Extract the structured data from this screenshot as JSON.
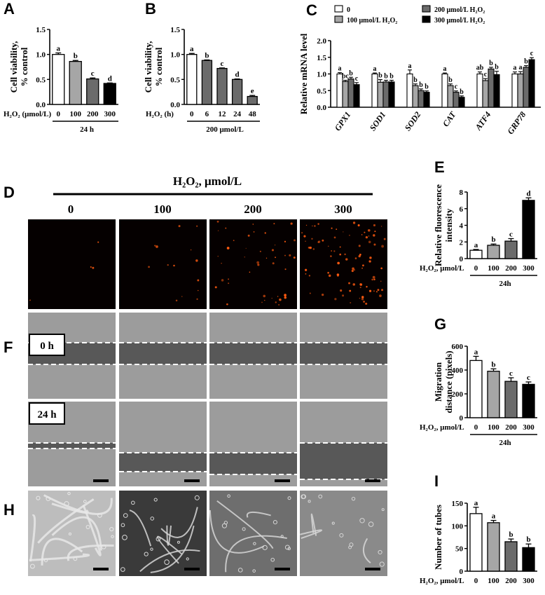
{
  "panels": {
    "A": {
      "letter": "A",
      "ylabel_1": "Cell viability,",
      "ylabel_2": "% control",
      "yticks": [
        "0.0",
        "0.5",
        "1.0",
        "1.5"
      ],
      "cond_label": "H₂O₂ (μmol/L)",
      "group_label": "24 h"
    },
    "B": {
      "letter": "B",
      "ylabel_1": "Cell viability,",
      "ylabel_2": "% control",
      "yticks": [
        "0.0",
        "0.5",
        "1.0",
        "1.5"
      ],
      "cond_label": "H₂O₂  (h)",
      "group_label": "200 μmol/L"
    },
    "C": {
      "letter": "C",
      "ylabel": "Relative mRNA level",
      "yticks": [
        "0.0",
        "0.5",
        "1.0",
        "1.5",
        "2.0"
      ],
      "legend": [
        "0",
        "100 μmol/L H₂O₂",
        "200 μmol/L H₂O₂",
        "300 μmol/L H₂O₂"
      ]
    },
    "D": {
      "letter": "D",
      "title": "H₂O₂,  μmol/L",
      "columns": [
        "0",
        "100",
        "200",
        "300"
      ]
    },
    "E": {
      "letter": "E",
      "ylabel_1": "Relative fluorescence",
      "ylabel_2": "intensity",
      "yticks": [
        "0",
        "2",
        "4",
        "6",
        "8"
      ],
      "cond_label": "H₂O₂, μmol/L",
      "group_label": "24h"
    },
    "F": {
      "letter": "F",
      "time_0": "0  h",
      "time_24": "24 h"
    },
    "G": {
      "letter": "G",
      "ylabel_1": "Migration",
      "ylabel_2": "distance (pixels)",
      "yticks": [
        "0",
        "200",
        "400",
        "600"
      ],
      "cond_label": "H₂O₂, μmol/L",
      "group_label": "24h"
    },
    "H": {
      "letter": "H"
    },
    "I": {
      "letter": "I",
      "ylabel": "Number of tubes",
      "yticks": [
        "0",
        "50",
        "100",
        "150"
      ],
      "cond_label": "H₂O₂, μmol/L"
    }
  },
  "colors": {
    "c0": "#ffffff",
    "c100": "#a6a6a6",
    "c200": "#6b6b6b",
    "c300": "#000000",
    "fluor_bg": "#050000",
    "fluor_dot": "#ff5a10",
    "bright_field": "#9c9c9c",
    "scratch_gap": "#585858"
  },
  "chart_data": [
    {
      "panel": "A",
      "type": "bar",
      "categories": [
        "0",
        "100",
        "200",
        "300"
      ],
      "values": [
        1.0,
        0.86,
        0.51,
        0.42
      ],
      "errors": [
        0.03,
        0.02,
        0.02,
        0.01
      ],
      "sig": [
        "a",
        "b",
        "c",
        "d"
      ],
      "ylim": [
        0,
        1.5
      ]
    },
    {
      "panel": "B",
      "type": "bar",
      "categories": [
        "0",
        "6",
        "12",
        "24",
        "48"
      ],
      "values": [
        1.0,
        0.88,
        0.72,
        0.5,
        0.16
      ],
      "errors": [
        0.02,
        0.01,
        0.01,
        0.01,
        0.02
      ],
      "sig": [
        "a",
        "b",
        "c",
        "d",
        "e"
      ],
      "ylim": [
        0,
        1.5
      ]
    },
    {
      "panel": "C",
      "type": "bar",
      "categories": [
        "GPX1",
        "SOD1",
        "SOD2",
        "CAT",
        "ATF4",
        "GRP78"
      ],
      "series": [
        {
          "name": "0",
          "values": [
            1.0,
            1.0,
            1.0,
            1.0,
            1.0,
            1.0
          ],
          "errors": [
            0.04,
            0.03,
            0.12,
            0.03,
            0.06,
            0.06
          ]
        },
        {
          "name": "100 μmol/L H₂O₂",
          "values": [
            0.77,
            0.75,
            0.65,
            0.65,
            0.8,
            1.0
          ],
          "errors": [
            0.04,
            0.08,
            0.05,
            0.05,
            0.06,
            0.07
          ]
        },
        {
          "name": "200 μmol/L H₂O₂",
          "values": [
            0.85,
            0.76,
            0.5,
            0.45,
            1.15,
            1.2
          ],
          "errors": [
            0.05,
            0.05,
            0.05,
            0.04,
            0.05,
            0.05
          ]
        },
        {
          "name": "300 μmol/L H₂O₂",
          "values": [
            0.68,
            0.76,
            0.45,
            0.3,
            0.98,
            1.43
          ],
          "errors": [
            0.06,
            0.05,
            0.04,
            0.04,
            0.1,
            0.06
          ]
        }
      ],
      "sig": [
        [
          "a",
          "bc",
          "b",
          "c"
        ],
        [
          "a",
          "b",
          "b",
          "b"
        ],
        [
          "a",
          "b",
          "b",
          "b"
        ],
        [
          "a",
          "b",
          "c",
          "b"
        ],
        [
          "ab",
          "c",
          "b",
          "b"
        ],
        [
          "a",
          "a",
          "b",
          "c"
        ]
      ],
      "ylim": [
        0,
        2.0
      ]
    },
    {
      "panel": "E",
      "type": "bar",
      "categories": [
        "0",
        "100",
        "200",
        "300"
      ],
      "values": [
        1.0,
        1.6,
        2.1,
        7.0
      ],
      "errors": [
        0.1,
        0.15,
        0.3,
        0.3
      ],
      "sig": [
        "a",
        "b",
        "c",
        "d"
      ],
      "ylim": [
        0,
        8
      ]
    },
    {
      "panel": "G",
      "type": "bar",
      "categories": [
        "0",
        "100",
        "200",
        "300"
      ],
      "values": [
        480,
        390,
        305,
        280
      ],
      "errors": [
        35,
        20,
        30,
        20
      ],
      "sig": [
        "a",
        "b",
        "c",
        "c"
      ],
      "ylim": [
        0,
        600
      ]
    },
    {
      "panel": "I",
      "type": "bar",
      "categories": [
        "0",
        "100",
        "200",
        "300"
      ],
      "values": [
        127,
        107,
        65,
        52
      ],
      "errors": [
        14,
        5,
        6,
        8
      ],
      "sig": [
        "a",
        "a",
        "b",
        "b"
      ],
      "ylim": [
        0,
        150
      ]
    }
  ]
}
